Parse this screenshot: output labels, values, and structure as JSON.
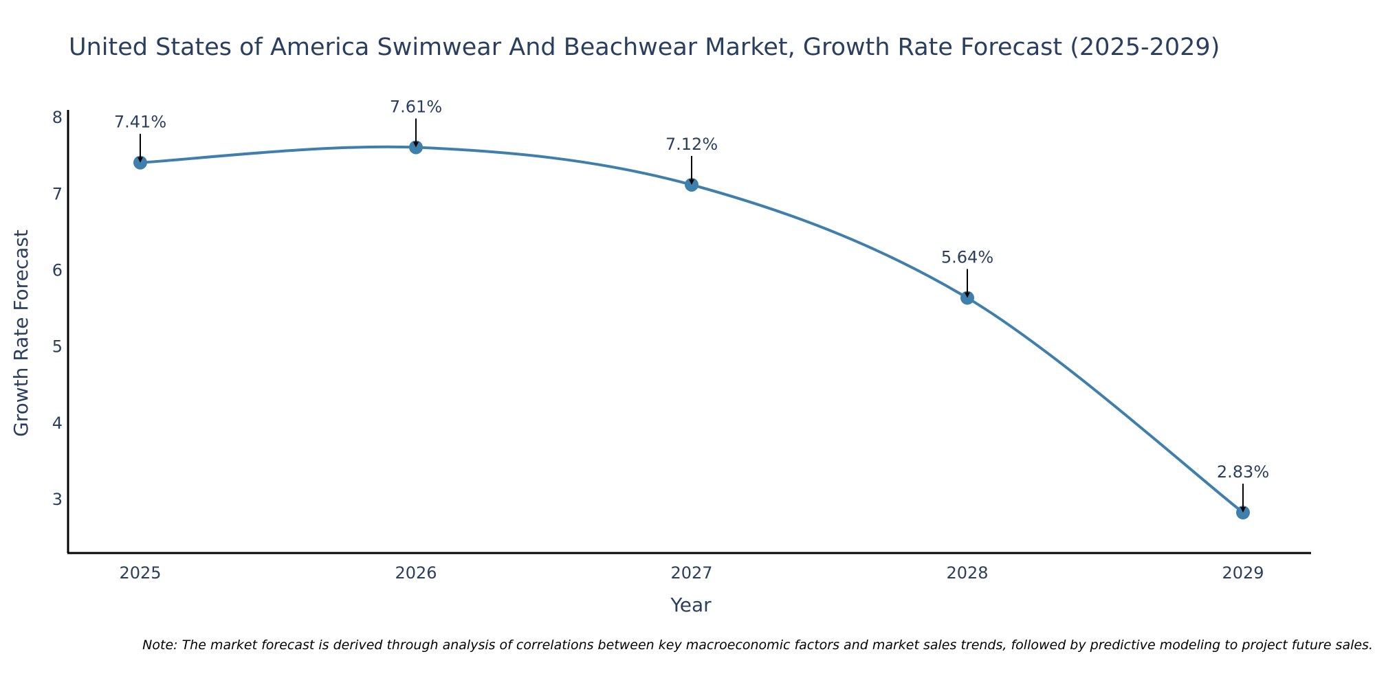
{
  "chart_data": {
    "type": "line",
    "title": "United States of America Swimwear And Beachwear Market, Growth Rate Forecast (2025-2029)",
    "xlabel": "Year",
    "ylabel": "Growth Rate Forecast",
    "categories": [
      "2025",
      "2026",
      "2027",
      "2028",
      "2029"
    ],
    "values": [
      7.41,
      7.61,
      7.12,
      5.64,
      2.83
    ],
    "data_labels": [
      "7.41%",
      "7.61%",
      "7.12%",
      "5.64%",
      "2.83%"
    ],
    "y_ticks": [
      "3",
      "4",
      "5",
      "6",
      "7",
      "8"
    ],
    "ylim": [
      2.3,
      8.1
    ],
    "grid": false,
    "legend": "none",
    "line_color": "#3f7fac",
    "marker_color": "#3f7fac",
    "arrow_color": "#000000",
    "note": "Note: The market forecast is derived through analysis of correlations between key macroeconomic factors and market sales trends, followed by predictive modeling to project future sales."
  }
}
